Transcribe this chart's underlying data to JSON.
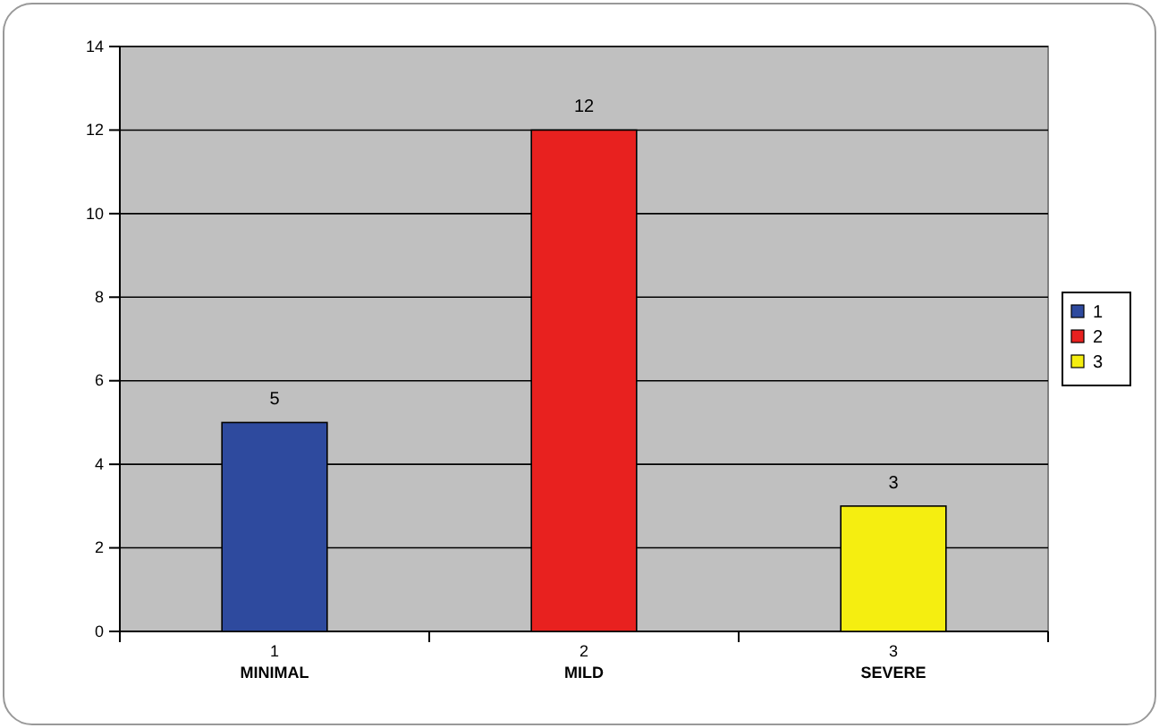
{
  "chart_data": {
    "type": "bar",
    "stacked": true,
    "categories": [
      "1\nMINIMAL",
      "2\nMILD",
      "3\nSEVERE"
    ],
    "series": [
      {
        "name": "1",
        "color": "#2e4a9e",
        "values": [
          5,
          null,
          null
        ]
      },
      {
        "name": "2",
        "color": "#e8211f",
        "values": [
          null,
          12,
          null
        ]
      },
      {
        "name": "3",
        "color": "#f5ee10",
        "values": [
          null,
          null,
          3
        ]
      }
    ],
    "ylim": [
      0,
      14
    ],
    "yticks": [
      0,
      2,
      4,
      6,
      8,
      10,
      12,
      14
    ],
    "grid": "y",
    "legend": "right",
    "data_labels": true
  }
}
